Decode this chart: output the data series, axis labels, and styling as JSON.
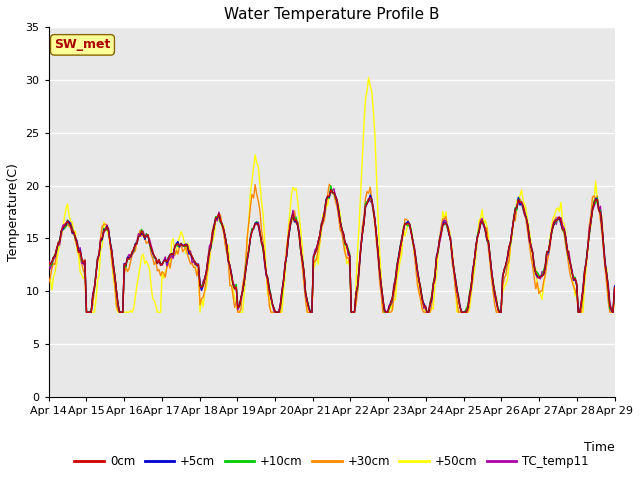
{
  "title": "Water Temperature Profile B",
  "xlabel": "Time",
  "ylabel": "Temperature(C)",
  "ylim": [
    0,
    35
  ],
  "yticks": [
    0,
    5,
    10,
    15,
    20,
    25,
    30,
    35
  ],
  "x_labels": [
    "Apr 14",
    "Apr 15",
    "Apr 16",
    "Apr 17",
    "Apr 18",
    "Apr 19",
    "Apr 20",
    "Apr 21",
    "Apr 22",
    "Apr 23",
    "Apr 24",
    "Apr 25",
    "Apr 26",
    "Apr 27",
    "Apr 28",
    "Apr 29"
  ],
  "legend_labels": [
    "0cm",
    "+5cm",
    "+10cm",
    "+30cm",
    "+50cm",
    "TC_temp11"
  ],
  "legend_colors": [
    "#cc0000",
    "#0000cc",
    "#00cc00",
    "#ff8800",
    "#ffff00",
    "#aa00aa"
  ],
  "annotation_text": "SW_met",
  "annotation_color": "#aa0000",
  "annotation_bg": "#ffff99",
  "background_color": "#e8e8e8",
  "grid_color": "#ffffff",
  "title_fontsize": 11,
  "axis_fontsize": 9,
  "tick_fontsize": 8
}
